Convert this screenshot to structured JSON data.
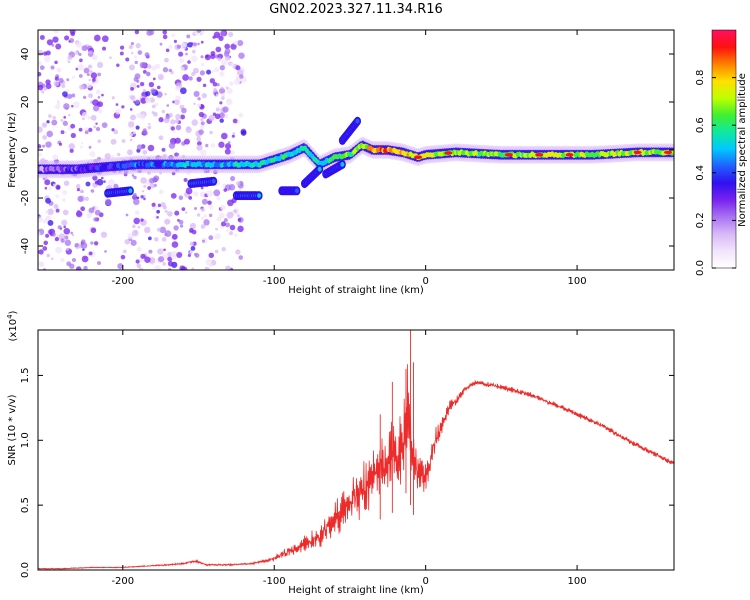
{
  "title": "GN02.2023.327.11.34.R16",
  "colors": {
    "snr_line": "#ee2b2b",
    "colormap": [
      "#ffffff",
      "#f2e4fb",
      "#d9b8f7",
      "#a873f2",
      "#7a22f0",
      "#3010ee",
      "#2060ff",
      "#00c8ff",
      "#10e8a0",
      "#40f030",
      "#c0ff00",
      "#ffe000",
      "#ff8000",
      "#ff1010",
      "#ff1060"
    ]
  },
  "chart_data": [
    {
      "type": "heatmap",
      "title": "GN02.2023.327.11.34.R16",
      "xlabel": "Height of straight line (km)",
      "ylabel": "Frequency (Hz)",
      "xlim": [
        -256,
        164
      ],
      "ylim": [
        -50,
        50
      ],
      "xticks": [
        -200,
        -100,
        0,
        100
      ],
      "yticks": [
        -40,
        -20,
        0,
        20,
        40
      ],
      "colorbar": {
        "label": "Normalized spectral amplitude",
        "range": [
          0.0,
          1.0
        ],
        "ticks": [
          "0.0",
          "0.2",
          "0.4",
          "0.6",
          "0.8"
        ]
      },
      "ridge": {
        "x": [
          -256,
          -230,
          -210,
          -190,
          -170,
          -150,
          -130,
          -110,
          -100,
          -90,
          -80,
          -70,
          -60,
          -50,
          -42,
          -35,
          -25,
          -15,
          -5,
          0,
          20,
          50,
          80,
          110,
          140,
          164
        ],
        "y": [
          -8,
          -8,
          -7,
          -6,
          -6,
          -6,
          -6,
          -6,
          -4,
          -2,
          1,
          -6,
          -3,
          -2,
          2,
          0,
          0,
          -1,
          -3,
          -2,
          -1,
          -2,
          -2,
          -2,
          -1,
          -1
        ],
        "intensity": [
          0.2,
          0.3,
          0.35,
          0.4,
          0.45,
          0.5,
          0.5,
          0.55,
          0.55,
          0.55,
          0.55,
          0.55,
          0.6,
          0.65,
          0.7,
          0.8,
          0.85,
          0.8,
          0.75,
          0.7,
          0.68,
          0.65,
          0.7,
          0.68,
          0.7,
          0.7
        ]
      },
      "branches": [
        {
          "x": [
            -210,
            -195
          ],
          "y": [
            -18,
            -17
          ],
          "intensity": 0.5
        },
        {
          "x": [
            -155,
            -140
          ],
          "y": [
            -14,
            -13
          ],
          "intensity": 0.5
        },
        {
          "x": [
            -125,
            -110
          ],
          "y": [
            -19,
            -19
          ],
          "intensity": 0.5
        },
        {
          "x": [
            -95,
            -85
          ],
          "y": [
            -17,
            -17
          ],
          "intensity": 0.45
        },
        {
          "x": [
            -80,
            -70
          ],
          "y": [
            -14,
            -8
          ],
          "intensity": 0.5
        },
        {
          "x": [
            -66,
            -55
          ],
          "y": [
            -10,
            -6
          ],
          "intensity": 0.5
        },
        {
          "x": [
            -55,
            -45
          ],
          "y": [
            4,
            12
          ],
          "intensity": 0.45
        }
      ]
    },
    {
      "type": "line",
      "xlabel": "Height of straight line (km)",
      "ylabel": "SNR (10 * v/v)",
      "y_multiplier_label": "(x10",
      "y_multiplier_exp": "4",
      "y_multiplier_close": ")",
      "xlim": [
        -256,
        164
      ],
      "ylim": [
        0.0,
        1.85
      ],
      "xticks": [
        -200,
        -100,
        0,
        100
      ],
      "yticks": [
        "0.0",
        "0.5",
        "1.0",
        "1.5"
      ],
      "series": [
        {
          "x": [
            -256,
            -240,
            -220,
            -200,
            -185,
            -170,
            -160,
            -152,
            -145,
            -130,
            -115,
            -105,
            -100,
            -95,
            -90,
            -85,
            -80,
            -75,
            -70,
            -65,
            -60,
            -55,
            -50,
            -45,
            -40,
            -35,
            -30,
            -25,
            -20,
            -15,
            -12,
            -10,
            -8,
            -5,
            0,
            5,
            10,
            15,
            20,
            25,
            30,
            35,
            40,
            50,
            60,
            70,
            80,
            90,
            100,
            110,
            120,
            130,
            140,
            150,
            164
          ],
          "y": [
            0.01,
            0.01,
            0.02,
            0.02,
            0.03,
            0.04,
            0.05,
            0.07,
            0.04,
            0.04,
            0.05,
            0.07,
            0.09,
            0.12,
            0.14,
            0.18,
            0.2,
            0.22,
            0.26,
            0.32,
            0.4,
            0.45,
            0.5,
            0.6,
            0.62,
            0.7,
            0.78,
            0.85,
            0.9,
            0.95,
            1.3,
            1.0,
            0.85,
            0.75,
            0.7,
            0.95,
            1.1,
            1.25,
            1.3,
            1.38,
            1.43,
            1.45,
            1.43,
            1.41,
            1.38,
            1.35,
            1.3,
            1.25,
            1.2,
            1.15,
            1.09,
            1.02,
            0.96,
            0.9,
            0.82
          ],
          "noise": [
            0.005,
            0.005,
            0.005,
            0.005,
            0.006,
            0.008,
            0.01,
            0.02,
            0.01,
            0.01,
            0.01,
            0.02,
            0.03,
            0.05,
            0.06,
            0.08,
            0.1,
            0.12,
            0.14,
            0.16,
            0.2,
            0.22,
            0.25,
            0.3,
            0.32,
            0.35,
            0.38,
            0.4,
            0.42,
            0.45,
            0.5,
            0.4,
            0.3,
            0.25,
            0.2,
            0.18,
            0.12,
            0.08,
            0.06,
            0.04,
            0.03,
            0.03,
            0.03,
            0.03,
            0.03,
            0.03,
            0.03,
            0.03,
            0.03,
            0.03,
            0.03,
            0.03,
            0.03,
            0.03,
            0.03
          ],
          "spikes": [
            {
              "x": -10,
              "y": 1.85
            },
            {
              "x": -13,
              "y": 1.55
            },
            {
              "x": -22,
              "y": 1.45
            },
            {
              "x": -30,
              "y": 1.2
            },
            {
              "x": -8,
              "y": 1.6
            }
          ]
        }
      ]
    }
  ]
}
